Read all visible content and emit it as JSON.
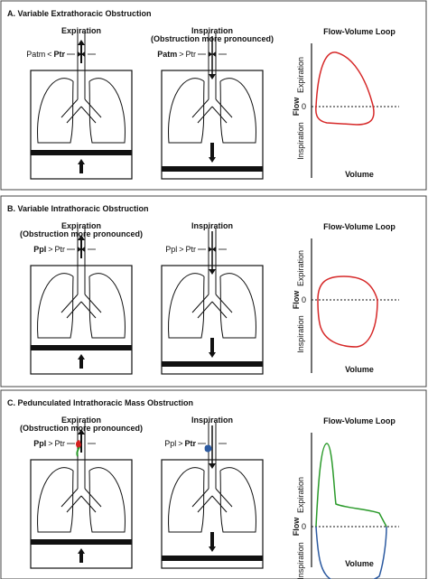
{
  "panels": [
    {
      "title": "A. Variable Extrathoracic Obstruction",
      "left": {
        "label": "Expiration",
        "pressure": {
          "a": "Patm",
          "op": "<",
          "b": "Ptr",
          "bold": "b"
        }
      },
      "middle": {
        "label": "Inspiration",
        "note": "(Obstruction more pronounced)",
        "pressure": {
          "a": "Patm",
          "op": ">",
          "b": "Ptr",
          "bold": "a"
        }
      },
      "loop": {
        "title": "Flow-Volume Loop",
        "y_label": "Flow",
        "upper": "Expiration",
        "lower": "Inspiration",
        "zero": "0",
        "x_label": "Volume"
      }
    },
    {
      "title": "B. Variable Intrathoracic Obstruction",
      "left": {
        "label": "Expiration",
        "note": "(Obstruction more pronounced)",
        "pressure": {
          "a": "Ppl",
          "op": ">",
          "b": "Ptr",
          "bold": "a"
        }
      },
      "middle": {
        "label": "Inspiration",
        "pressure": {
          "a": "Ppl",
          "op": ">",
          "b": "Ptr",
          "bold": "none"
        }
      },
      "loop": {
        "title": "Flow-Volume Loop",
        "y_label": "Flow",
        "upper": "Expiration",
        "lower": "Inspiration",
        "zero": "0",
        "x_label": "Volume"
      }
    },
    {
      "title": "C. Pedunculated Intrathoracic Mass Obstruction",
      "left": {
        "label": "Expiration",
        "note": "(Obstruction more pronounced)",
        "pressure": {
          "a": "Ppl",
          "op": ">",
          "b": "Ptr",
          "bold": "a"
        }
      },
      "middle": {
        "label": "Inspiration",
        "pressure": {
          "a": "Ppl",
          "op": ">",
          "b": "Ptr",
          "bold": "b"
        }
      },
      "loop": {
        "title": "Flow-Volume Loop",
        "y_label": "Flow",
        "upper": "Expiration",
        "lower": "Inspiration",
        "zero": "0",
        "x_label": "Volume"
      }
    }
  ]
}
